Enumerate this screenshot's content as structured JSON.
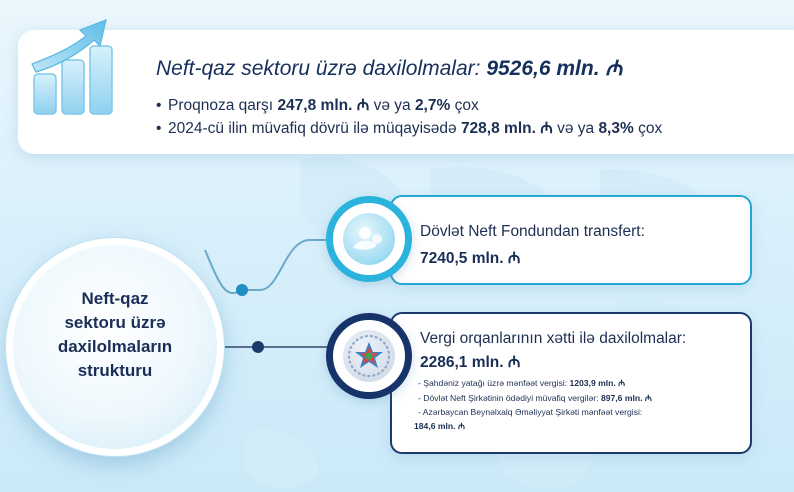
{
  "summary": {
    "title_prefix": "Neft-qaz sektoru üzrə daxilolmalar: ",
    "title_value": "9526,6 mln. ₼",
    "line1_prefix": "Proqnoza qarşı ",
    "line1_value1": "247,8 mln. ₼",
    "line1_mid": " və ya ",
    "line1_value2": "2,7%",
    "line1_suffix": " çox",
    "line2_prefix": "2024-cü ilin müvafiq dövrü ilə müqayisədə ",
    "line2_value1": "728,8 mln. ₼",
    "line2_mid": " və ya ",
    "line2_value2": "8,3%",
    "line2_suffix": " çox"
  },
  "center": {
    "line1": "Neft-qaz",
    "line2": "sektoru üzrə",
    "line3": "daxilolmaların",
    "line4": "strukturu"
  },
  "card1": {
    "label": "Dövlət Neft Fondundan transfert:",
    "value": "7240,5 mln. ₼"
  },
  "card2": {
    "label": "Vergi orqanlarının xətti ilə daxilolmalar:",
    "value": "2286,1 mln. ₼",
    "items": [
      {
        "label": "- Şahdəniz yatağı üzrə mənfəət vergisi: ",
        "value": "1203,9 mln. ₼"
      },
      {
        "label": "- Dövlət Neft Şirkətinin ödədiyi müvafiq vergilər: ",
        "value": "897,6 mln. ₼"
      },
      {
        "label": "- Azərbaycan Beynəlxalq Əməliyyat Şirkəti mənfəət vergisi:",
        "value": ""
      },
      {
        "label": "",
        "value": "184,6 mln. ₼"
      }
    ]
  },
  "icons": {
    "growth": "growth-chart-icon",
    "fund": "oil-fund-icon",
    "tax": "tax-emblem-icon"
  },
  "colors": {
    "accent_light": "#24a7d6",
    "accent_dark": "#1b3a6b",
    "text": "#1d2f52"
  }
}
